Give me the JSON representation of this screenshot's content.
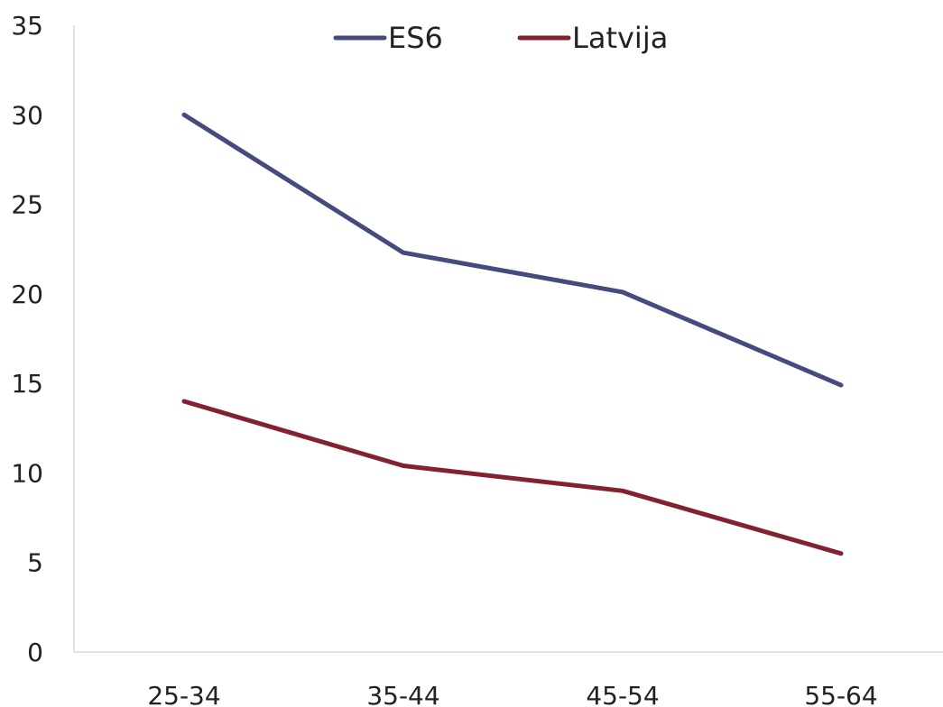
{
  "chart_data": {
    "type": "line",
    "title": "",
    "xlabel": "",
    "ylabel": "",
    "categories": [
      "25-34",
      "35-44",
      "45-54",
      "55-64"
    ],
    "series": [
      {
        "name": "ES6",
        "color": "#454a7f",
        "values": [
          30.0,
          22.3,
          20.1,
          14.9
        ]
      },
      {
        "name": "Latvija",
        "color": "#82222f",
        "values": [
          14.0,
          10.4,
          9.0,
          5.5
        ]
      }
    ],
    "ylim": [
      0,
      35
    ],
    "yticks": [
      "0",
      "5",
      "10",
      "15",
      "20",
      "25",
      "30",
      "35"
    ],
    "grid": false,
    "legend": "top-center"
  }
}
